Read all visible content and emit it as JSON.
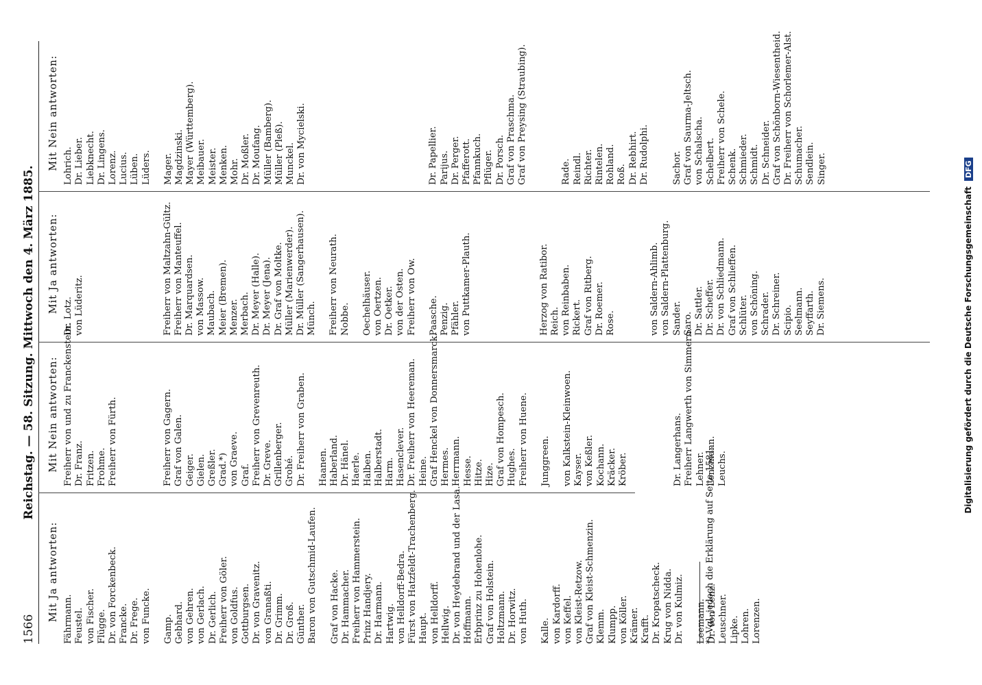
{
  "header": {
    "page_number": "1566",
    "center": "Reichstag. — 58. Sitzung. Mittwoch den 4. März 1885."
  },
  "columns": [
    {
      "heading": "Mit Ja antworten:",
      "items": [
        "Fährmann.",
        "Feustel.",
        "von Fischer.",
        "Flügge.",
        "Dr. von Forckenbeck.",
        "Francke.",
        "Dr. Frege.",
        "von Funcke.",
        "",
        "Gamp.",
        "Gebhard.",
        "von Gehren.",
        "von Gerlach.",
        "Dr. Gerlich.",
        "Freiherr von Göler.",
        "von Goldfus.",
        "Gottburgsen.",
        "Dr. von Gravenitz.",
        "von Granaßti.",
        "Dr. Grimm.",
        "Dr. Groß.",
        "Günther.",
        "Baron von Gutschmid-Laufen.",
        "",
        "Graf von Hacke.",
        "Dr. Hammacher.",
        "Freiherr von Hammerstein.",
        "Prinz Handjery.",
        "Dr. Harmann.",
        "Hartwig.",
        "von Helldorff-Bedra.",
        "Fürst von Hatzfeldt-Trachenberg.",
        "Haupt.",
        "von Helldorff.",
        "Hellwig.",
        "Dr. von Heydebrand und der Lasa.",
        "Hoffmann.",
        "Erbprinz zu Hohenlohe.",
        "Graf von Holstein.",
        "Holtzmann.",
        "Dr. Horwitz.",
        "von Huth.",
        "",
        "Kalle.",
        "von Kardorff.",
        "von Keffel.",
        "von Kleist-Retzow.",
        "Graf von Kleist-Schmenzin.",
        "Klemm.",
        "Klumpp.",
        "von Köller.",
        "Krämer.",
        "Krafft.",
        "Dr. Kropatscheck.",
        "Krug von Nidda.",
        "Dr. von Kulmiz.",
        "",
        "Leemann.",
        "Dr. von Lenz.",
        "Leuschner.",
        "Lipke.",
        "Lohren.",
        "Lorenzen."
      ]
    },
    {
      "heading": "Mit Nein antworten:",
      "items": [
        "Freiherr von und zu Franckenstein.",
        "Dr. Franz.",
        "Fritzen.",
        "Frohme.",
        "Freiherr von Fürth.",
        "",
        "",
        "",
        "",
        "Freiherr von Gagern.",
        "Graf von Galen.",
        "Geiger.",
        "Gielen.",
        "Greßler.",
        "Grad.*)",
        "von Graeve.",
        "Graf.",
        "Freiherr von Grevenreuth.",
        "Dr. Greve.",
        "Grillenberger.",
        "Grohé.",
        "Dr. Freiherr von Graben.",
        "",
        "Haanen.",
        "Haberland.",
        "Dr. Hänel.",
        "Haerle.",
        "Halben.",
        "Halberstadt.",
        "Harm.",
        "Hasenclever.",
        "Dr. Freiherr von Heereman.",
        "Heine.",
        "Graf Henckel von Donnersmarck.",
        "Hermes.",
        "Herrmann.",
        "Hesse.",
        "Hitze.",
        "Hize.",
        "Graf von Hompesch.",
        "Hughes.",
        "Freiherr von Huene.",
        "",
        "Junggreen.",
        "",
        "von Kalkstein-Kleinwoen.",
        "Kayser.",
        "von Keßler.",
        "Kochann.",
        "Kräcker.",
        "Kröber.",
        "",
        "",
        "",
        "",
        "Dr. Langerhans.",
        "Freiherr Langwerth von Simmern.",
        "Lehner.",
        "Lenzmann.",
        "Leuchs."
      ]
    },
    {
      "heading": "Mit Ja antworten:",
      "items": [
        "Dr. Lotz.",
        "von Lüderitz.",
        "",
        "",
        "",
        "",
        "",
        "",
        "",
        "Freiherr von Maltzahn-Gültz.",
        "Freiherr von Manteuffel.",
        "Dr. Marquardsen.",
        "von Massow.",
        "Maubach.",
        "Meier (Bremen).",
        "Menzer.",
        "Merbach.",
        "Dr. Meyer (Halle).",
        "Dr. Meyer (Jena).",
        "Dr. Graf von Moltke.",
        "Müller (Marienwerder).",
        "Dr. Müller (Sangerhausen).",
        "Münch.",
        "",
        "Freiherr von Neurath.",
        "Nobbe.",
        "",
        "Oechelhäuser.",
        "von Oertzen.",
        "Dr. Oetker.",
        "von der Osten.",
        "Freiherr von Ow.",
        "",
        "Paasche.",
        "Penzig.",
        "Pfähler.",
        "von Puttkamer-Plauth.",
        "",
        "",
        "",
        "",
        "",
        "",
        "Herzog von Ratibor.",
        "Reich.",
        "von Reinbaben.",
        "Rickert.",
        "Graf von Ritberg.",
        "Dr. Roemer.",
        "Rose.",
        "",
        "",
        "",
        "von Saldern-Ahlimb.",
        "von Saldern-Plattenburg.",
        "Sander.",
        "Saro.",
        "Dr. Sattler.",
        "Dr. Scheffer.",
        "Dr. von Schliedmann.",
        "Graf von Schlieffen.",
        "Schlüter.",
        "von Schöning.",
        "Schrader.",
        "Dr. Schreiner.",
        "Scipio.",
        "Seelmann.",
        "Seyffarth.",
        "Dr. Siemens."
      ]
    },
    {
      "heading": "Mit Nein antworten:",
      "items": [
        "Lohrich.",
        "Dr. Lieber.",
        "Liebknecht.",
        "Dr. Lingens.",
        "Lorenz.",
        "Lucius.",
        "Lüben.",
        "Lüders.",
        "",
        "Mager.",
        "Magdzinski.",
        "Mayer (Württemberg).",
        "Meibauer.",
        "Meister.",
        "Menken.",
        "Mohr.",
        "Dr. Moßler.",
        "Dr. Moufang.",
        "Müller (Bamberg).",
        "Müller (Pleß).",
        "Munckel.",
        "Dr. von Mycielski.",
        "",
        "",
        "",
        "",
        "",
        "",
        "",
        "",
        "",
        "",
        "",
        "Dr. Papellier.",
        "Parijus.",
        "Dr. Perger.",
        "Pfafferott.",
        "Pfannkuch.",
        "Pflüger.",
        "Dr. Porsch.",
        "Graf von Praschma.",
        "Graf von Preysing (Straubing).",
        "",
        "",
        "",
        "Rade.",
        "Reindl.",
        "Richter.",
        "Rintelen.",
        "Rohland.",
        "Roß.",
        "Dr. Rebhirt.",
        "Dr. Rudolphi.",
        "",
        "",
        "Sachor.",
        "Graf von Saurma-Jeltsch.",
        "von Schalscha.",
        "Schelbert.",
        "Freiherr von Schele.",
        "Schenk.",
        "Schmieder.",
        "Schmidt.",
        "Dr. Schneider.",
        "Graf von Schönborn-Wiesentheid.",
        "Dr. Freiherr von Schorlemer-Alst.",
        "Schumacher.",
        "Sendlein.",
        "Singer."
      ]
    }
  ],
  "footnote": "*) Vgl. jedoch die Erklärung auf Seite 1581.",
  "side_note": "Digitalisierung gefördert durch die Deutsche Forschungsgemeinschaft",
  "side_logo": "DFG"
}
